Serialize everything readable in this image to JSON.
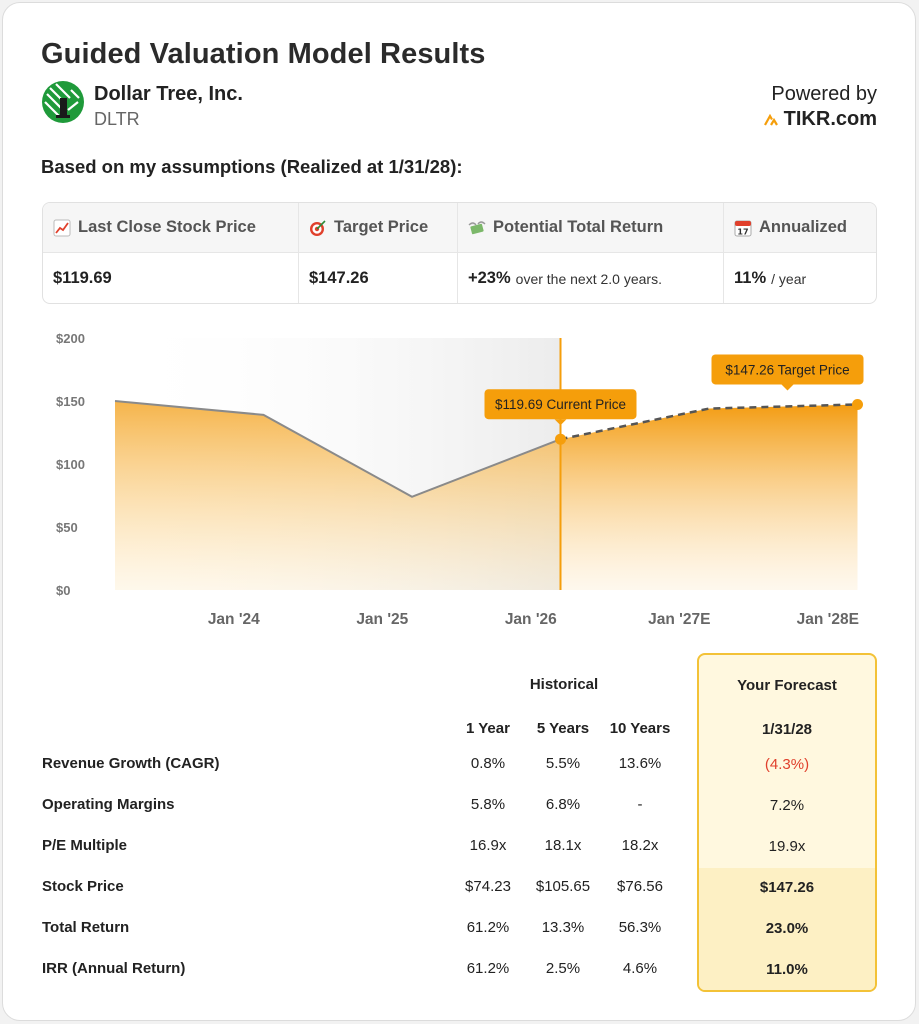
{
  "header": {
    "title": "Guided Valuation Model Results",
    "company": "Dollar Tree, Inc.",
    "ticker": "DLTR",
    "powered_by": "Powered by",
    "brand": "TIKR.com"
  },
  "assumption_text": "Based on my assumptions (Realized at 1/31/28):",
  "summary": [
    {
      "icon": "chart-up-icon",
      "label": "Last Close Stock Price",
      "value": "$119.69",
      "suffix": ""
    },
    {
      "icon": "target-icon",
      "label": "Target Price",
      "value": "$147.26",
      "suffix": ""
    },
    {
      "icon": "money-wings-icon",
      "label": "Potential Total Return",
      "value": "+23%",
      "suffix": "over the next 2.0 years."
    },
    {
      "icon": "calendar-icon",
      "label": "Annualized",
      "value": "11%",
      "suffix": "/ year"
    }
  ],
  "chart_data": {
    "type": "area",
    "y_tick_labels": [
      "$200",
      "$150",
      "$100",
      "$50",
      "$0"
    ],
    "ylim": [
      0,
      200
    ],
    "x_tick_labels": [
      "Jan '24",
      "Jan '25",
      "Jan '26",
      "Jan '27E",
      "Jan '28E"
    ],
    "historical": {
      "x": [
        0,
        1,
        2,
        3
      ],
      "y": [
        150,
        139,
        74,
        119.69
      ]
    },
    "forecast": {
      "x": [
        3,
        4,
        5
      ],
      "y": [
        119.69,
        144,
        147.26
      ]
    },
    "current_price_label": "$119.69 Current Price",
    "target_price_label": "$147.26 Target Price",
    "colors": {
      "fill": "#f5a623",
      "accent": "#f59e0b",
      "line": "#8a8a8a",
      "dash": "#555555"
    }
  },
  "table": {
    "historical_header": "Historical",
    "forecast_header": "Your Forecast",
    "columns": [
      "1 Year",
      "5 Years",
      "10 Years"
    ],
    "forecast_date": "1/31/28",
    "rows": [
      {
        "label": "Revenue Growth (CAGR)",
        "h1": "0.8%",
        "h5": "5.5%",
        "h10": "13.6%",
        "forecast": "(4.3%)"
      },
      {
        "label": "Operating Margins",
        "h1": "5.8%",
        "h5": "6.8%",
        "h10": "-",
        "forecast": "7.2%"
      },
      {
        "label": "P/E Multiple",
        "h1": "16.9x",
        "h5": "18.1x",
        "h10": "18.2x",
        "forecast": "19.9x"
      },
      {
        "label": "Stock Price",
        "h1": "$74.23",
        "h5": "$105.65",
        "h10": "$76.56",
        "forecast": "$147.26"
      },
      {
        "label": "Total Return",
        "h1": "61.2%",
        "h5": "13.3%",
        "h10": "56.3%",
        "forecast": "23.0%"
      },
      {
        "label": "IRR (Annual Return)",
        "h1": "61.2%",
        "h5": "2.5%",
        "h10": "4.6%",
        "forecast": "11.0%"
      }
    ]
  }
}
